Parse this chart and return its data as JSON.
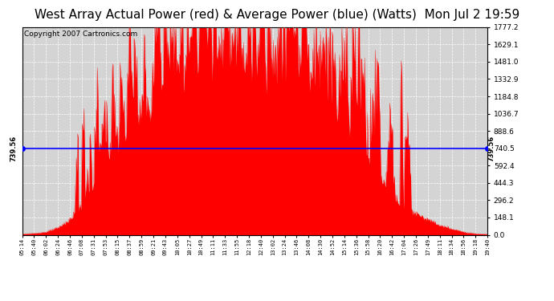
{
  "title": "West Array Actual Power (red) & Average Power (blue) (Watts)  Mon Jul 2 19:59",
  "copyright": "Copyright 2007 Cartronics.com",
  "avg_power": 739.56,
  "ymax": 1777.2,
  "ymin": 0.0,
  "yticks": [
    0.0,
    148.1,
    296.2,
    444.3,
    592.4,
    740.5,
    888.6,
    1036.7,
    1184.8,
    1332.9,
    1481.0,
    1629.1,
    1777.2
  ],
  "ytick_labels": [
    "0.0",
    "148.1",
    "296.2",
    "444.3",
    "592.4",
    "740.5",
    "888.6",
    "1036.7",
    "1184.8",
    "1332.9",
    "1481.0",
    "1629.1",
    "1777.2"
  ],
  "avg_label": "739.56",
  "background_color": "#ffffff",
  "fill_color": "#ff0000",
  "line_color": "#0000ff",
  "plot_bg": "#d4d4d4",
  "title_fontsize": 11,
  "copyright_fontsize": 6.5,
  "x_times": [
    "05:14",
    "05:40",
    "06:02",
    "06:24",
    "06:46",
    "07:08",
    "07:31",
    "07:53",
    "08:15",
    "08:37",
    "08:59",
    "09:21",
    "09:43",
    "10:05",
    "10:27",
    "10:49",
    "11:11",
    "11:33",
    "11:55",
    "12:18",
    "12:40",
    "13:02",
    "13:24",
    "13:46",
    "14:08",
    "14:30",
    "14:52",
    "15:14",
    "15:36",
    "15:58",
    "16:20",
    "16:42",
    "17:04",
    "17:26",
    "17:49",
    "18:11",
    "18:34",
    "18:56",
    "19:18",
    "19:40"
  ],
  "power_envelope": [
    8,
    12,
    25,
    60,
    130,
    260,
    420,
    600,
    750,
    900,
    1000,
    1100,
    1200,
    1320,
    1430,
    1500,
    1530,
    1550,
    1560,
    1540,
    1510,
    1490,
    1470,
    1420,
    1350,
    1250,
    1150,
    1020,
    850,
    650,
    480,
    350,
    220,
    180,
    130,
    80,
    50,
    25,
    10,
    5
  ],
  "seed": 123
}
